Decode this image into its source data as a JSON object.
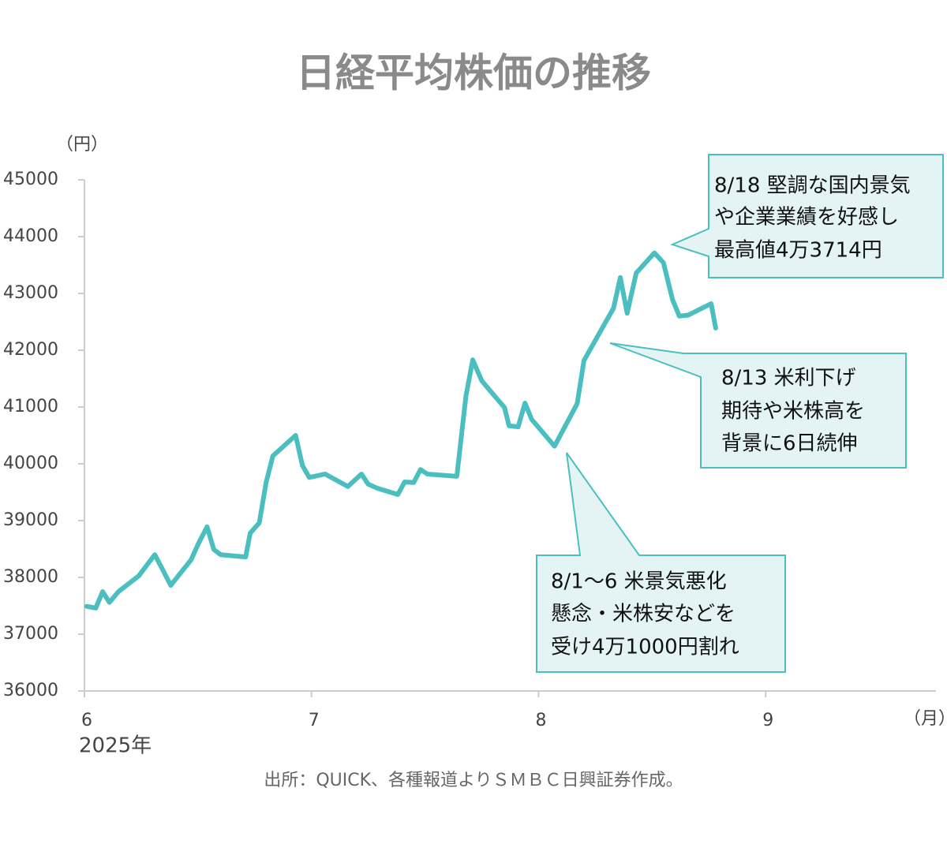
{
  "chart_data": {
    "type": "line",
    "title": "日経平均株価の推移",
    "y_unit": "（円）",
    "x_unit": "（月）",
    "year_label": "2025年",
    "source": "出所：QUICK、各種報道よりＳＭＢＣ日興証券作成。",
    "xlim": [
      6,
      9.75
    ],
    "xticks": [
      6,
      7,
      8,
      9
    ],
    "ylim": [
      36000,
      45000
    ],
    "yticks": [
      36000,
      37000,
      38000,
      39000,
      40000,
      41000,
      42000,
      43000,
      44000,
      45000
    ],
    "grid": false,
    "series": [
      {
        "name": "日経平均株価",
        "color": "#4bbfbf",
        "x": [
          6.01,
          6.05,
          6.08,
          6.11,
          6.15,
          6.24,
          6.27,
          6.31,
          6.34,
          6.38,
          6.42,
          6.47,
          6.5,
          6.54,
          6.57,
          6.6,
          6.71,
          6.73,
          6.77,
          6.8,
          6.83,
          6.93,
          6.96,
          6.99,
          7.06,
          7.16,
          7.22,
          7.25,
          7.29,
          7.38,
          7.41,
          7.45,
          7.48,
          7.51,
          7.64,
          7.68,
          7.71,
          7.75,
          7.85,
          7.87,
          7.91,
          7.94,
          7.97,
          8.07,
          8.17,
          8.2,
          8.33,
          8.36,
          8.39,
          8.43,
          8.51,
          8.55,
          8.59,
          8.62,
          8.66,
          8.76,
          8.78
        ],
        "values": [
          37490,
          37460,
          37750,
          37560,
          37750,
          38030,
          38190,
          38400,
          38170,
          37860,
          38060,
          38310,
          38580,
          38890,
          38490,
          38400,
          38360,
          38780,
          38960,
          39670,
          40140,
          40500,
          39970,
          39760,
          39820,
          39600,
          39820,
          39640,
          39570,
          39460,
          39680,
          39670,
          39900,
          39820,
          39780,
          41190,
          41830,
          41460,
          40990,
          40670,
          40650,
          41070,
          40780,
          40310,
          41060,
          41820,
          42740,
          43280,
          42650,
          43360,
          43714,
          43540,
          42890,
          42600,
          42620,
          42820,
          42390
        ]
      }
    ],
    "annotations": [
      {
        "lines": [
          "8/18 堅調な国内景気",
          "や企業業績を好感し",
          "最高値4万3714円"
        ]
      },
      {
        "lines": [
          "8/13 米利下げ",
          "期待や米株高を",
          "背景に6日続伸"
        ]
      },
      {
        "lines": [
          "8/1～6 米景気悪化",
          "懸念・米株安などを",
          "受け4万1000円割れ"
        ]
      }
    ]
  }
}
